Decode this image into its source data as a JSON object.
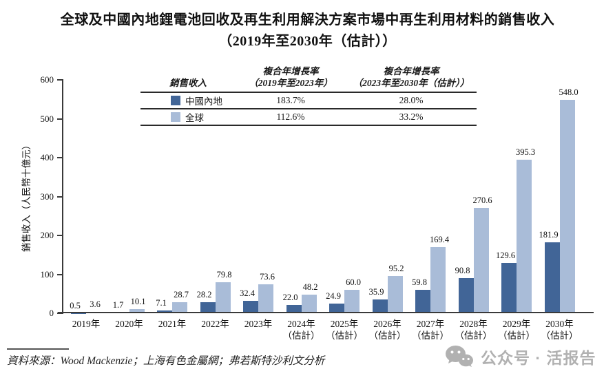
{
  "title": {
    "line1": "全球及中國內地鋰電池回收及再生利用解決方案市場中再生利用材料的銷售收入",
    "line2": "（2019年至2030年（估計））"
  },
  "legend_table": {
    "header": {
      "col1": "銷售收入",
      "col2_line1": "複合年增長率",
      "col2_line2": "（2019年至2023年）",
      "col3_line1": "複合年增長率",
      "col3_line2": "（2023年至2030年（估計））"
    },
    "rows": [
      {
        "series": "中國內地",
        "swatch_color": "#416597",
        "cagr_2019_2023": "183.7%",
        "cagr_2023_2030": "28.0%"
      },
      {
        "series": "全球",
        "swatch_color": "#a9bcd8",
        "cagr_2019_2023": "112.6%",
        "cagr_2023_2030": "33.2%"
      }
    ]
  },
  "chart_data": {
    "type": "bar",
    "title": "全球及中國內地鋰電池回收及再生利用解決方案市場中再生利用材料的銷售收入（2019年至2030年（估計））",
    "xlabel": "",
    "ylabel": "銷售收入（人民幣十億元）",
    "ylim": [
      0,
      600
    ],
    "ytick_step": 100,
    "grid": false,
    "legend_position": "top-table",
    "categories": [
      {
        "label": "2019年",
        "note": ""
      },
      {
        "label": "2020年",
        "note": ""
      },
      {
        "label": "2021年",
        "note": ""
      },
      {
        "label": "2022年",
        "note": ""
      },
      {
        "label": "2023年",
        "note": ""
      },
      {
        "label": "2024年",
        "note": "（估計）"
      },
      {
        "label": "2025年",
        "note": "（估計）"
      },
      {
        "label": "2026年",
        "note": "（估計）"
      },
      {
        "label": "2027年",
        "note": "（估計）"
      },
      {
        "label": "2028年",
        "note": "（估計）"
      },
      {
        "label": "2029年",
        "note": "（估計）"
      },
      {
        "label": "2030年",
        "note": "（估計）"
      }
    ],
    "series": [
      {
        "name": "中國內地",
        "color": "#416597",
        "values": [
          0.5,
          1.7,
          7.1,
          28.2,
          32.4,
          22.0,
          24.9,
          35.9,
          59.8,
          90.8,
          129.6,
          181.9
        ]
      },
      {
        "name": "全球",
        "color": "#a9bcd8",
        "values": [
          3.6,
          10.1,
          28.7,
          79.8,
          73.6,
          48.2,
          60.0,
          95.2,
          169.4,
          270.6,
          395.3,
          548.0
        ]
      }
    ]
  },
  "source": {
    "text": "資料來源：Wood Mackenzie；上海有色金屬網；弗若斯特沙利文分析"
  },
  "watermark": {
    "icon": "wechat-icon",
    "text": "公众号 · 活报告"
  }
}
